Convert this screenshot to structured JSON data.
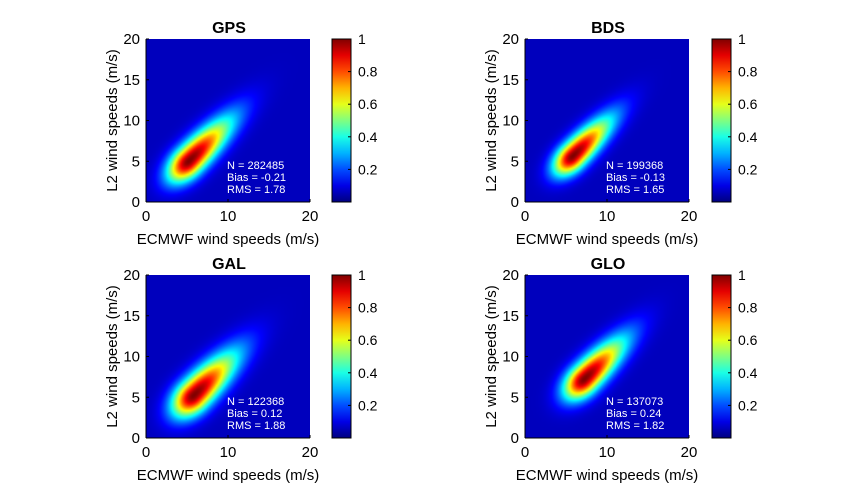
{
  "chart_data": [
    {
      "type": "heatmap",
      "title": "GPS",
      "xlabel": "ECMWF wind speeds (m/s)",
      "ylabel": "L2 wind speeds (m/s)",
      "xlim": [
        0,
        20
      ],
      "ylim": [
        0,
        20
      ],
      "xticks": [
        "0",
        "10",
        "20"
      ],
      "yticks": [
        "0",
        "5",
        "10",
        "15",
        "20"
      ],
      "colorbar": {
        "ticks": [
          "0.2",
          "0.4",
          "0.6",
          "0.8",
          "1"
        ],
        "range": [
          0,
          1
        ],
        "colormap": "jet"
      },
      "density": {
        "peak": [
          5.2,
          5.0
        ],
        "spread_along": 4.2,
        "spread_across": 1.1
      },
      "stats": [
        "N = 282485",
        "Bias = -0.21",
        "RMS = 1.78"
      ]
    },
    {
      "type": "heatmap",
      "title": "BDS",
      "xlabel": "ECMWF wind speeds (m/s)",
      "ylabel": "L2 wind speeds (m/s)",
      "xlim": [
        0,
        20
      ],
      "ylim": [
        0,
        20
      ],
      "xticks": [
        "0",
        "10",
        "20"
      ],
      "yticks": [
        "0",
        "5",
        "10",
        "15",
        "20"
      ],
      "colorbar": {
        "ticks": [
          "0.2",
          "0.4",
          "0.6",
          "0.8",
          "1"
        ],
        "range": [
          0,
          1
        ],
        "colormap": "jet"
      },
      "density": {
        "peak": [
          5.8,
          5.6
        ],
        "spread_along": 3.8,
        "spread_across": 1.0
      },
      "stats": [
        "N = 199368",
        "Bias = -0.13",
        "RMS = 1.65"
      ]
    },
    {
      "type": "heatmap",
      "title": "GAL",
      "xlabel": "ECMWF wind speeds (m/s)",
      "ylabel": "L2 wind speeds (m/s)",
      "xlim": [
        0,
        20
      ],
      "ylim": [
        0,
        20
      ],
      "xticks": [
        "0",
        "10",
        "20"
      ],
      "yticks": [
        "0",
        "5",
        "10",
        "15",
        "20"
      ],
      "colorbar": {
        "ticks": [
          "0.2",
          "0.4",
          "0.6",
          "0.8",
          "1"
        ],
        "range": [
          0,
          1
        ],
        "colormap": "jet"
      },
      "density": {
        "peak": [
          5.8,
          5.2
        ],
        "spread_along": 4.2,
        "spread_across": 1.2
      },
      "stats": [
        "N = 122368",
        "Bias = 0.12",
        "RMS = 1.88"
      ]
    },
    {
      "type": "heatmap",
      "title": "GLO",
      "xlabel": "ECMWF wind speeds (m/s)",
      "ylabel": "L2 wind speeds (m/s)",
      "xlim": [
        0,
        20
      ],
      "ylim": [
        0,
        20
      ],
      "xticks": [
        "0",
        "10",
        "20"
      ],
      "yticks": [
        "0",
        "5",
        "10",
        "15",
        "20"
      ],
      "colorbar": {
        "ticks": [
          "0.2",
          "0.4",
          "0.6",
          "0.8",
          "1"
        ],
        "range": [
          0,
          1
        ],
        "colormap": "jet"
      },
      "density": {
        "peak": [
          7.2,
          7.2
        ],
        "spread_along": 4.0,
        "spread_across": 1.1
      },
      "stats": [
        "N = 137073",
        "Bias = 0.24",
        "RMS = 1.82"
      ]
    }
  ]
}
